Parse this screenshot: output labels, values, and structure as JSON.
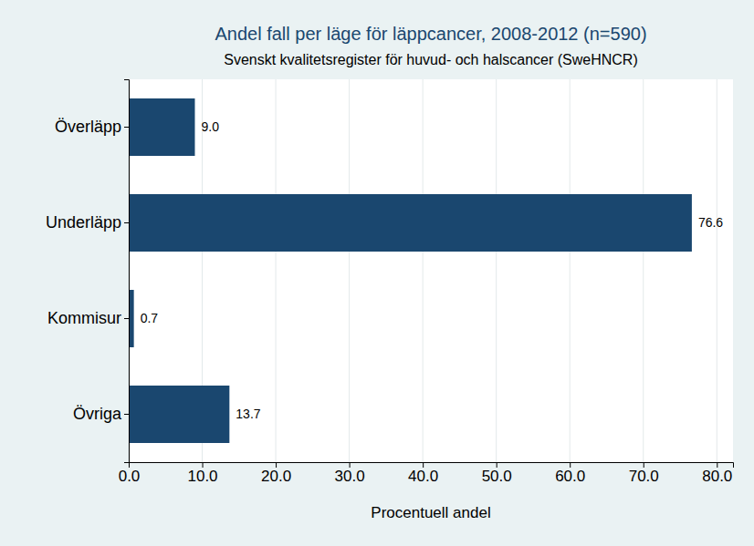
{
  "chart_data": {
    "type": "bar",
    "title": "Andel fall per läge för läppcancer, 2008-2012 (n=590)",
    "subtitle": "Svenskt kvalitetsregister för huvud- och halscancer (SweHNCR)",
    "x_label": "Procentuell andel",
    "categories": [
      "Överläpp",
      "Underläpp",
      "Kommisur",
      "Övriga"
    ],
    "values": [
      9.0,
      76.6,
      0.7,
      13.7
    ],
    "value_labels": [
      "9.0",
      "76.6",
      "0.7",
      "13.7"
    ],
    "color": "#1a476f",
    "orientation": "horizontal",
    "data_labels": true,
    "grid": true,
    "xlim": [
      0,
      82.2
    ],
    "xticks": [
      {
        "value": 0,
        "label": "0.0"
      },
      {
        "value": 10,
        "label": "10.0"
      },
      {
        "value": 20,
        "label": "20.0"
      },
      {
        "value": 30,
        "label": "30.0"
      },
      {
        "value": 40,
        "label": "40.0"
      },
      {
        "value": 50,
        "label": "50.0"
      },
      {
        "value": 60,
        "label": "60.0"
      },
      {
        "value": 70,
        "label": "70.0"
      },
      {
        "value": 80,
        "label": "80.0"
      }
    ]
  }
}
